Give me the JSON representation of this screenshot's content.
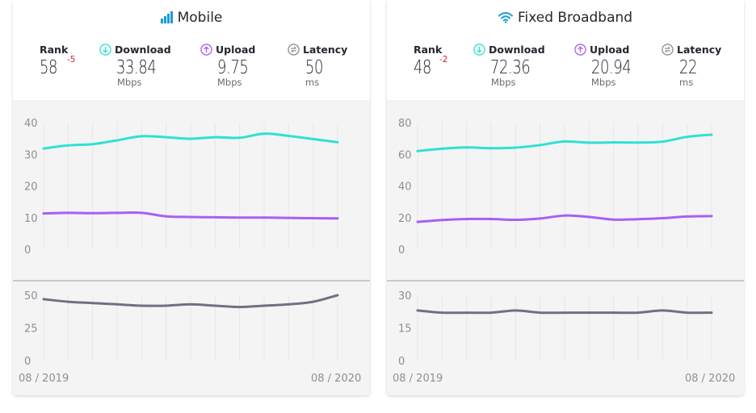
{
  "colors": {
    "download": "#2fe1d1",
    "upload": "#a95ff0",
    "latency": "#6f7082",
    "rank_change": "#d0213c",
    "title_icon": "#1a9bd7"
  },
  "cards": [
    {
      "title": "Mobile",
      "icon": "signal-bars-icon",
      "rank": {
        "label": "Rank",
        "value": "58",
        "change": "-5"
      },
      "download": {
        "label": "Download",
        "value": "33.84",
        "unit": "Mbps"
      },
      "upload": {
        "label": "Upload",
        "value": "9.75",
        "unit": "Mbps"
      },
      "latency": {
        "label": "Latency",
        "value": "50",
        "unit": "ms"
      },
      "x_start": "08 / 2019",
      "x_end": "08 / 2020"
    },
    {
      "title": "Fixed Broadband",
      "icon": "wifi-icon",
      "rank": {
        "label": "Rank",
        "value": "48",
        "change": "-2"
      },
      "download": {
        "label": "Download",
        "value": "72.36",
        "unit": "Mbps"
      },
      "upload": {
        "label": "Upload",
        "value": "20.94",
        "unit": "Mbps"
      },
      "latency": {
        "label": "Latency",
        "value": "22",
        "unit": "ms"
      },
      "x_start": "08 / 2019",
      "x_end": "08 / 2020"
    }
  ],
  "chart_data": [
    {
      "type": "line",
      "x": [
        "08/2019",
        "09/2019",
        "10/2019",
        "11/2019",
        "12/2019",
        "01/2020",
        "02/2020",
        "03/2020",
        "04/2020",
        "05/2020",
        "06/2020",
        "07/2020",
        "08/2020"
      ],
      "speed_ylim": [
        0,
        40
      ],
      "speed_ticks": [
        0,
        10,
        20,
        30,
        40
      ],
      "latency_ylim": [
        0,
        50
      ],
      "latency_ticks": [
        0,
        25,
        50
      ],
      "series": [
        {
          "key": "download",
          "values": [
            31.8,
            32.8,
            33.2,
            34.4,
            35.7,
            35.4,
            34.9,
            35.4,
            35.2,
            36.5,
            35.8,
            34.8,
            33.8
          ]
        },
        {
          "key": "upload",
          "values": [
            11.3,
            11.5,
            11.4,
            11.5,
            11.5,
            10.4,
            10.2,
            10.1,
            10.0,
            10.0,
            9.9,
            9.8,
            9.75
          ]
        },
        {
          "key": "latency",
          "values": [
            47,
            45,
            44,
            43,
            42,
            42,
            43,
            42,
            41,
            42,
            43,
            45,
            50
          ]
        }
      ]
    },
    {
      "type": "line",
      "x": [
        "08/2019",
        "09/2019",
        "10/2019",
        "11/2019",
        "12/2019",
        "01/2020",
        "02/2020",
        "03/2020",
        "04/2020",
        "05/2020",
        "06/2020",
        "07/2020",
        "08/2020"
      ],
      "speed_ylim": [
        0,
        80
      ],
      "speed_ticks": [
        0,
        20,
        40,
        60,
        80
      ],
      "latency_ylim": [
        0,
        30
      ],
      "latency_ticks": [
        0,
        15,
        30
      ],
      "series": [
        {
          "key": "download",
          "values": [
            62.0,
            63.5,
            64.3,
            63.8,
            64.2,
            65.8,
            68.1,
            67.3,
            67.5,
            67.4,
            68.0,
            71.0,
            72.36
          ]
        },
        {
          "key": "upload",
          "values": [
            17.3,
            18.5,
            19.1,
            19.1,
            18.6,
            19.4,
            21.3,
            20.4,
            18.7,
            19.0,
            19.6,
            20.7,
            20.94
          ]
        },
        {
          "key": "latency",
          "values": [
            23,
            22,
            22,
            22,
            23,
            22,
            22,
            22,
            22,
            22,
            23,
            22,
            22
          ]
        }
      ]
    }
  ]
}
